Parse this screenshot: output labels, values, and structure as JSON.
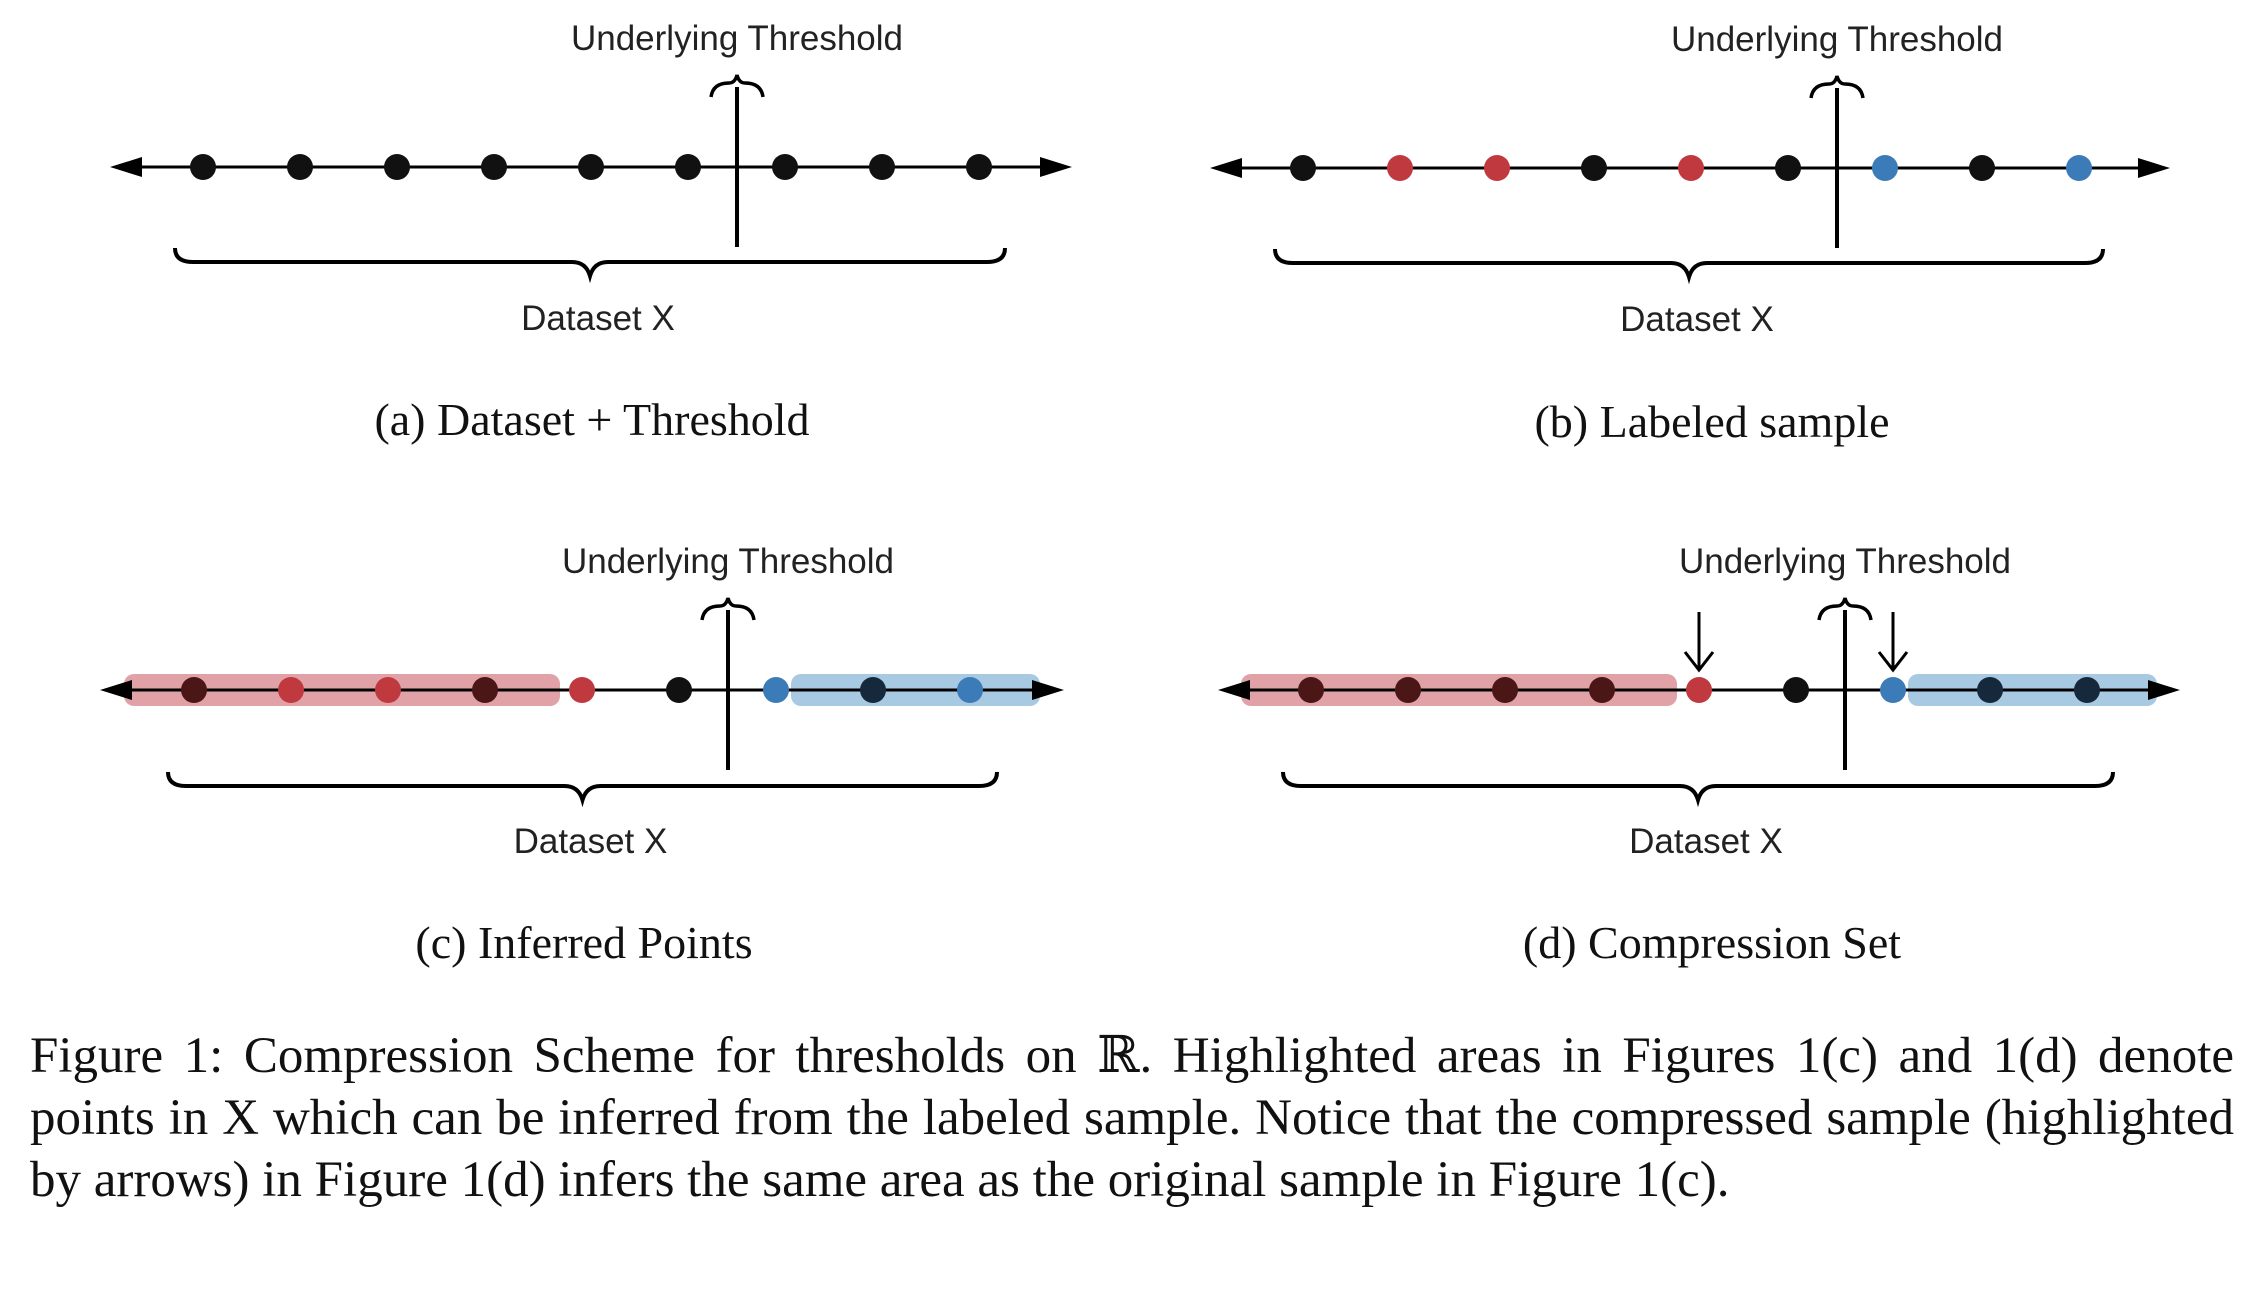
{
  "colors": {
    "black_point": "#111111",
    "red_point": "#c0393f",
    "blue_point": "#3b7cb8",
    "red_band": "#e0a2a6",
    "blue_band": "#a8c9e2",
    "dark_red_point": "#4a1616",
    "dark_blue_point": "#16293c"
  },
  "panels": [
    {
      "id": "a",
      "threshold_label": "Underlying Threshold",
      "dataset_label": "Dataset X",
      "caption": "(a) Dataset + Threshold",
      "points": [
        "black",
        "black",
        "black",
        "black",
        "black",
        "black",
        "black",
        "black",
        "black"
      ],
      "red_band": null,
      "blue_band": null,
      "arrows": []
    },
    {
      "id": "b",
      "threshold_label": "Underlying Threshold",
      "dataset_label": "Dataset X",
      "caption": "(b) Labeled sample",
      "points": [
        "black",
        "red",
        "red",
        "black",
        "red",
        "black",
        "blue",
        "black",
        "blue"
      ],
      "red_band": null,
      "blue_band": null,
      "arrows": []
    },
    {
      "id": "c",
      "threshold_label": "Underlying Threshold",
      "dataset_label": "Dataset X",
      "caption": "(c) Inferred Points",
      "points": [
        "dark_red",
        "red",
        "red",
        "dark_red",
        "red",
        "black",
        "blue",
        "dark_blue",
        "blue"
      ],
      "red_band": [
        0,
        4
      ],
      "blue_band": [
        6,
        8
      ],
      "arrows": []
    },
    {
      "id": "d",
      "threshold_label": "Underlying Threshold",
      "dataset_label": "Dataset X",
      "caption": "(d) Compression Set",
      "points": [
        "dark_red",
        "dark_red",
        "dark_red",
        "dark_red",
        "red",
        "black",
        "blue",
        "dark_blue",
        "dark_blue"
      ],
      "red_band": [
        0,
        4
      ],
      "blue_band": [
        6,
        8
      ],
      "arrows": [
        4,
        6
      ]
    }
  ],
  "figure_caption": "Figure 1: Compression Scheme for thresholds on ℝ. Highlighted areas in Figures 1(c) and 1(d) denote points in X which can be inferred from the labeled sample. Notice that the compressed sample (highlighted by arrows) in Figure 1(d) infers the same area as the original sample in Figure 1(c)."
}
